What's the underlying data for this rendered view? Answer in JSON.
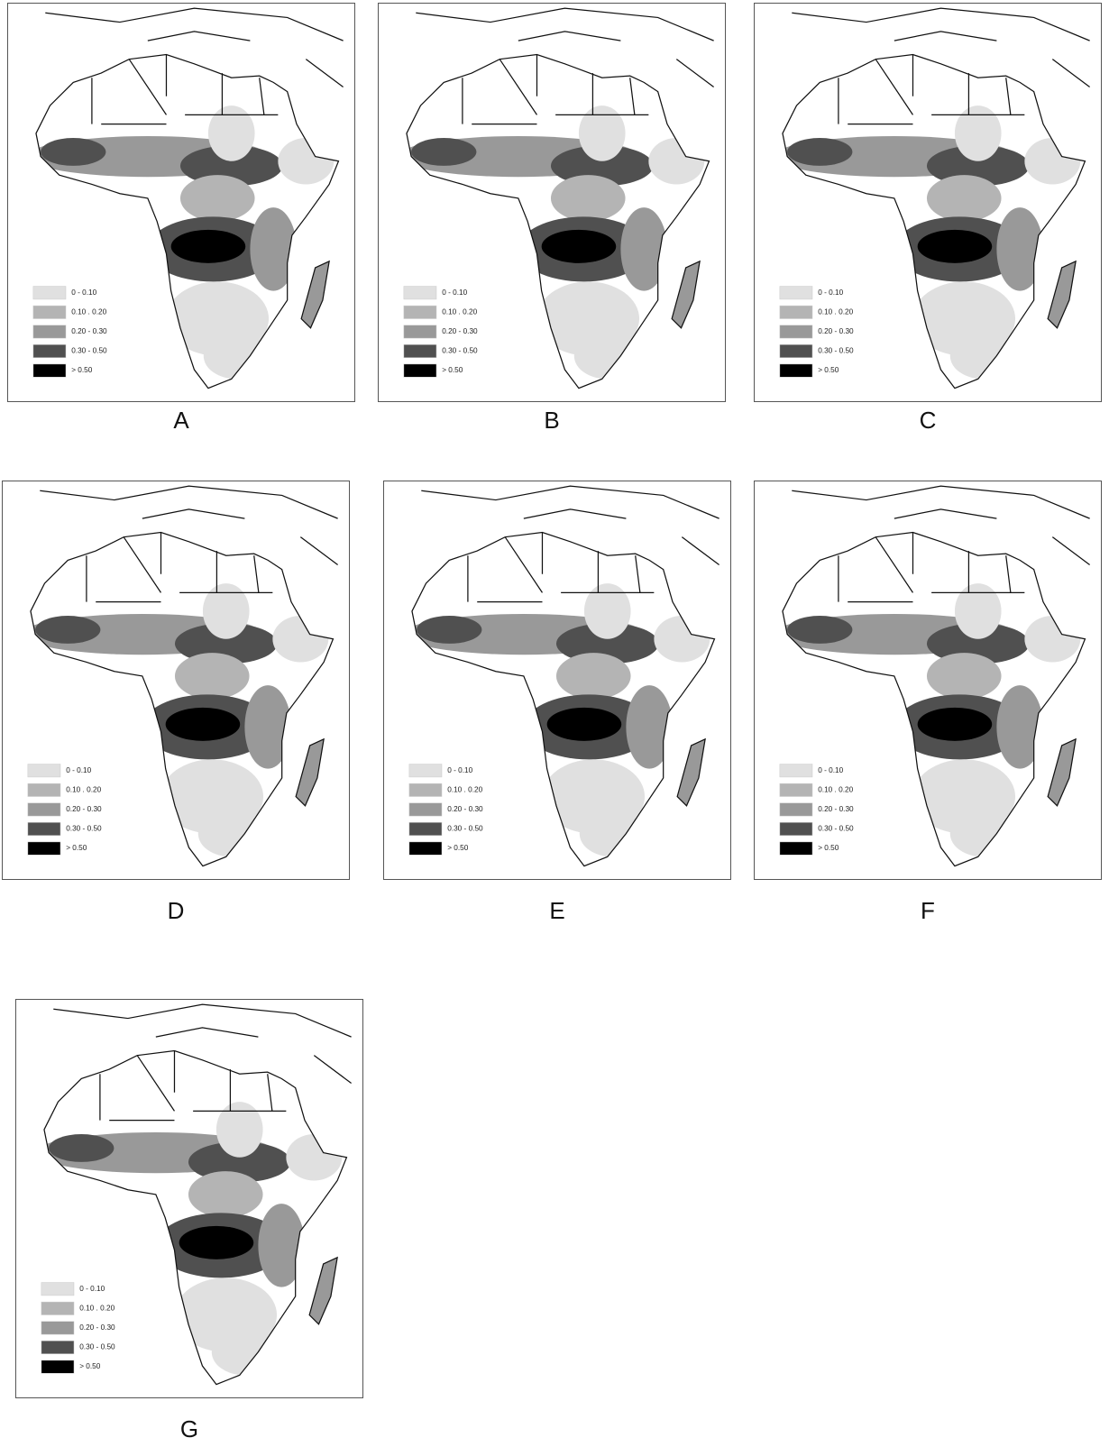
{
  "panels": [
    {
      "label": "A"
    },
    {
      "label": "B"
    },
    {
      "label": "C"
    },
    {
      "label": "D"
    },
    {
      "label": "E"
    },
    {
      "label": "F"
    },
    {
      "label": "G"
    }
  ],
  "legend": [
    {
      "label": "0 - 0.10",
      "color": "#e0e0e0"
    },
    {
      "label": "0.10 . 0.20",
      "color": "#b4b4b4"
    },
    {
      "label": "0.20 - 0.30",
      "color": "#999999"
    },
    {
      "label": "0.30 - 0.50",
      "color": "#505050"
    },
    {
      "label": "> 0.50",
      "color": "#000000"
    }
  ]
}
